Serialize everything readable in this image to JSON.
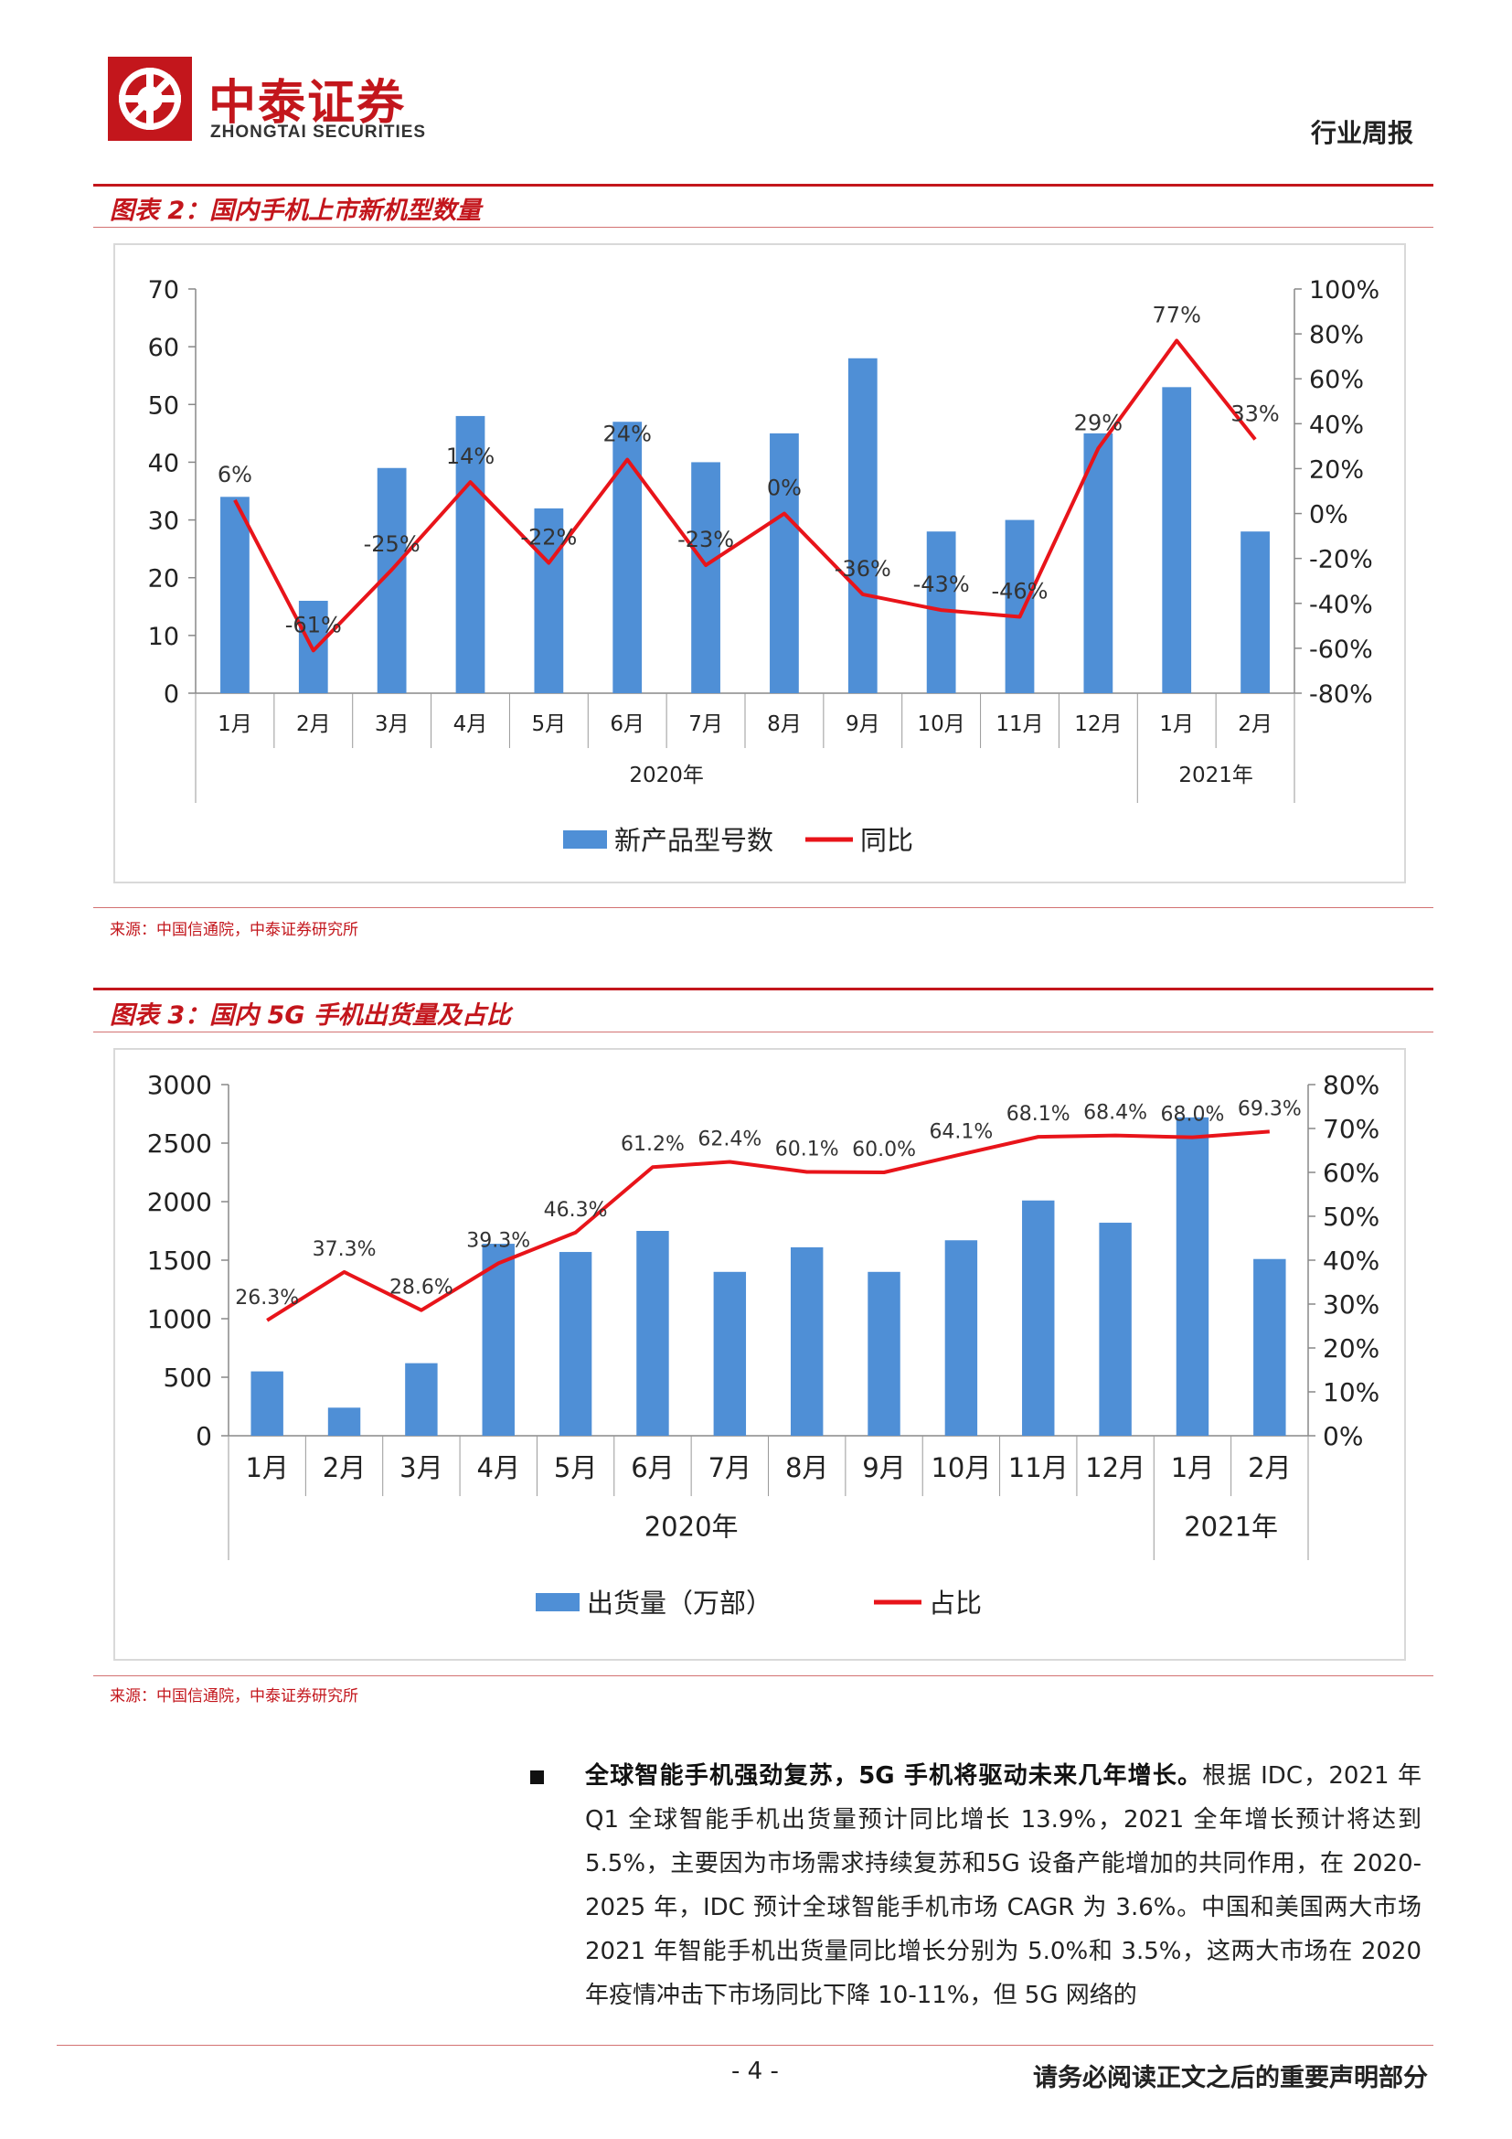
{
  "header": {
    "company_cn": "中泰证券",
    "company_en": "ZHONGTAI SECURITIES",
    "doc_type": "行业周报",
    "brand_color": "#c3161c"
  },
  "figure2": {
    "title": "图表 2：国内手机上市新机型数量",
    "source": "来源：中国信通院，中泰证券研究所"
  },
  "figure3": {
    "title": "图表 3：国内 5G 手机出货量及占比",
    "source": "来源：中国信通院，中泰证券研究所"
  },
  "chart_data": [
    {
      "type": "bar",
      "categories": [
        "1月",
        "2月",
        "3月",
        "4月",
        "5月",
        "6月",
        "7月",
        "8月",
        "9月",
        "10月",
        "11月",
        "12月",
        "1月",
        "2月"
      ],
      "groups": [
        {
          "label": "2020年",
          "count": 12
        },
        {
          "label": "2021年",
          "count": 2
        }
      ],
      "series": [
        {
          "name": "新产品型号数",
          "kind": "bar",
          "axis": "left",
          "color": "#4f8fd6",
          "values": [
            34,
            16,
            39,
            48,
            32,
            47,
            40,
            45,
            58,
            28,
            30,
            45,
            53,
            28
          ]
        },
        {
          "name": "同比",
          "kind": "line",
          "axis": "right",
          "color": "#e8141a",
          "values": [
            6,
            -61,
            -25,
            14,
            -22,
            24,
            -23,
            0,
            -36,
            -43,
            -46,
            29,
            77,
            33
          ],
          "labels": [
            "6%",
            "-61%",
            "-25%",
            "14%",
            "-22%",
            "24%",
            "-23%",
            "0%",
            "-36%",
            "-43%",
            "-46%",
            "29%",
            "77%",
            "33%"
          ]
        }
      ],
      "y_left": {
        "min": 0,
        "max": 70,
        "ticks": [
          "0",
          "10",
          "20",
          "30",
          "40",
          "50",
          "60",
          "70"
        ]
      },
      "y_right": {
        "min": -80,
        "max": 100,
        "ticks": [
          "-80%",
          "-60%",
          "-40%",
          "-20%",
          "0%",
          "20%",
          "40%",
          "60%",
          "80%",
          "100%"
        ]
      },
      "legend": "bottom",
      "grid": false
    },
    {
      "type": "bar",
      "categories": [
        "1月",
        "2月",
        "3月",
        "4月",
        "5月",
        "6月",
        "7月",
        "8月",
        "9月",
        "10月",
        "11月",
        "12月",
        "1月",
        "2月"
      ],
      "groups": [
        {
          "label": "2020年",
          "count": 12
        },
        {
          "label": "2021年",
          "count": 2
        }
      ],
      "series": [
        {
          "name": "出货量（万部）",
          "kind": "bar",
          "axis": "left",
          "color": "#4f8fd6",
          "values": [
            550,
            240,
            620,
            1640,
            1570,
            1750,
            1400,
            1610,
            1400,
            1670,
            2010,
            1820,
            2720,
            1510
          ]
        },
        {
          "name": "占比",
          "kind": "line",
          "axis": "right",
          "color": "#e8141a",
          "values": [
            26.3,
            37.3,
            28.6,
            39.3,
            46.3,
            61.2,
            62.4,
            60.1,
            60.0,
            64.1,
            68.1,
            68.4,
            68.0,
            69.3
          ],
          "labels": [
            "26.3%",
            "37.3%",
            "28.6%",
            "39.3%",
            "46.3%",
            "61.2%",
            "62.4%",
            "60.1%",
            "60.0%",
            "64.1%",
            "68.1%",
            "68.4%",
            "68.0%",
            "69.3%"
          ]
        }
      ],
      "y_left": {
        "min": 0,
        "max": 3000,
        "ticks": [
          "0",
          "500",
          "1000",
          "1500",
          "2000",
          "2500",
          "3000"
        ]
      },
      "y_right": {
        "min": 0,
        "max": 80,
        "ticks": [
          "0%",
          "10%",
          "20%",
          "30%",
          "40%",
          "50%",
          "60%",
          "70%",
          "80%"
        ]
      },
      "legend": "bottom",
      "grid": false
    }
  ],
  "paragraph": {
    "lead": "全球智能手机强劲复苏，5G 手机将驱动未来几年增长。",
    "body": "根据 IDC，2021 年 Q1 全球智能手机出货量预计同比增长 13.9%，2021 全年增长预计将达到5.5%，主要因为市场需求持续复苏和5G 设备产能增加的共同作用，在 2020-2025 年，IDC 预计全球智能手机市场 CAGR 为 3.6%。中国和美国两大市场 2021 年智能手机出货量同比增长分别为 5.0%和 3.5%，这两大市场在 2020 年疫情冲击下市场同比下降 10-11%，但 5G 网络的"
  },
  "footer": {
    "page": "- 4 -",
    "disclaimer": "请务必阅读正文之后的重要声明部分"
  }
}
